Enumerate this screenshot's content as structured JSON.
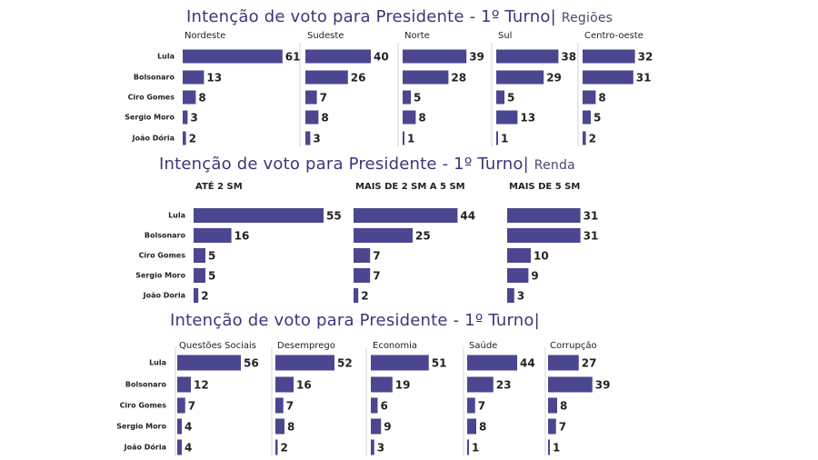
{
  "chart_data": [
    {
      "type": "bar",
      "orientation": "horizontal",
      "title": "Intenção de voto para Presidente - 1º Turno|",
      "subtitle": "Regiões",
      "categories": [
        "Lula",
        "Bolsonaro",
        "Ciro Gomes",
        "Sergio Moro",
        "João Dória"
      ],
      "series": [
        {
          "name": "Nordeste",
          "values": [
            61,
            13,
            8,
            3,
            2
          ]
        },
        {
          "name": "Sudeste",
          "values": [
            40,
            26,
            7,
            8,
            3
          ]
        },
        {
          "name": "Norte",
          "values": [
            39,
            28,
            5,
            8,
            1
          ]
        },
        {
          "name": "Sul",
          "values": [
            38,
            29,
            5,
            13,
            1
          ]
        },
        {
          "name": "Centro-oeste",
          "values": [
            32,
            31,
            8,
            5,
            2
          ]
        }
      ],
      "colors": [
        "#4b4690"
      ]
    },
    {
      "type": "bar",
      "orientation": "horizontal",
      "title": "Intenção de voto para Presidente - 1º Turno|",
      "subtitle": "Renda",
      "categories": [
        "Lula",
        "Bolsonaro",
        "Ciro Gomes",
        "Sergio Moro",
        "João Doria"
      ],
      "series": [
        {
          "name": "ATÉ 2 SM",
          "values": [
            55,
            16,
            5,
            5,
            2
          ]
        },
        {
          "name": "MAIS DE 2 SM A 5 SM",
          "values": [
            44,
            25,
            7,
            7,
            2
          ]
        },
        {
          "name": "MAIS DE 5 SM",
          "values": [
            31,
            31,
            10,
            9,
            3
          ]
        }
      ],
      "colors": [
        "#4b4690"
      ]
    },
    {
      "type": "bar",
      "orientation": "horizontal",
      "title": "Intenção de voto para Presidente - 1º Turno|",
      "subtitle": "",
      "categories": [
        "Lula",
        "Bolsonaro",
        "Ciro Gomes",
        "Sergio Moro",
        "João Dória"
      ],
      "series": [
        {
          "name": "Questões Sociais",
          "values": [
            56,
            12,
            7,
            4,
            4
          ]
        },
        {
          "name": "Desemprego",
          "values": [
            52,
            16,
            7,
            8,
            2
          ]
        },
        {
          "name": "Economia",
          "values": [
            51,
            19,
            6,
            9,
            3
          ]
        },
        {
          "name": "Saúde",
          "values": [
            44,
            23,
            7,
            8,
            1
          ]
        },
        {
          "name": "Corrupção",
          "values": [
            27,
            39,
            8,
            7,
            1
          ]
        }
      ],
      "colors": [
        "#4b4690"
      ]
    }
  ]
}
